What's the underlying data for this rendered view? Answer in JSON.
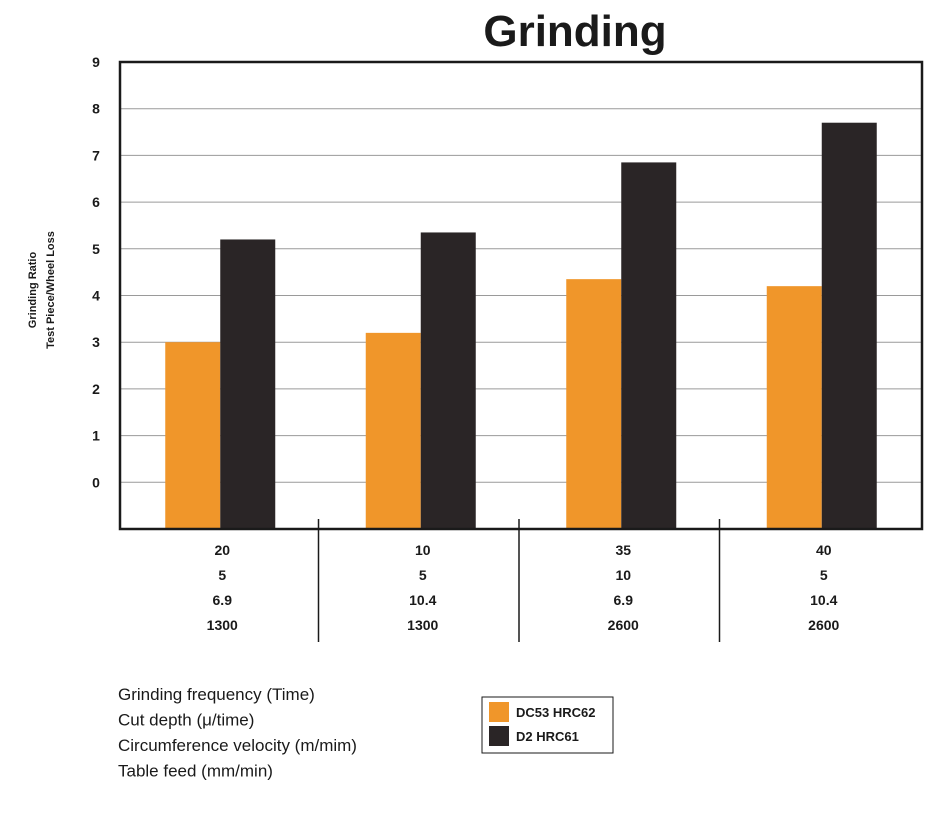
{
  "chart_data": {
    "type": "bar",
    "title": "Grinding",
    "ylabel_lines": [
      "Grinding Ratio",
      "Test Piece/Wheel Loss"
    ],
    "ylim": [
      -1,
      9
    ],
    "yticks": [
      0,
      1,
      2,
      3,
      4,
      5,
      6,
      7,
      8,
      9
    ],
    "grid": true,
    "categories": [
      [
        "20",
        "5",
        "6.9",
        "1300"
      ],
      [
        "10",
        "5",
        "10.4",
        "1300"
      ],
      [
        "35",
        "10",
        "6.9",
        "2600"
      ],
      [
        "40",
        "5",
        "10.4",
        "2600"
      ]
    ],
    "series": [
      {
        "name": "DC53 HRC62",
        "color": "#f0962a",
        "values": [
          3.0,
          3.2,
          4.35,
          4.2
        ]
      },
      {
        "name": "D2 HRC61",
        "color": "#2a2526",
        "values": [
          5.2,
          5.35,
          6.85,
          7.7
        ]
      }
    ],
    "parameter_labels": [
      "Grinding frequency (Time)",
      "Cut depth (μ/time)",
      "Circumference velocity (m/mim)",
      "Table feed (mm/min)"
    ],
    "legend_position": "bottom-center"
  }
}
